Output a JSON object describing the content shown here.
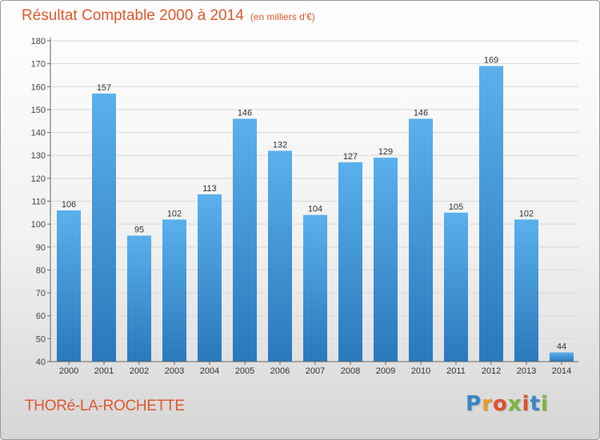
{
  "chart_data": {
    "type": "bar",
    "title": "Résultat Comptable 2000 à 2014",
    "subtitle": "(en milliers d'€)",
    "categories": [
      "2000",
      "2001",
      "2002",
      "2003",
      "2004",
      "2005",
      "2006",
      "2007",
      "2008",
      "2009",
      "2010",
      "2011",
      "2012",
      "2013",
      "2014"
    ],
    "values": [
      106,
      157,
      95,
      102,
      113,
      146,
      132,
      104,
      127,
      129,
      146,
      105,
      169,
      102,
      44
    ],
    "ylim": [
      40,
      180
    ],
    "yticks": [
      40,
      50,
      60,
      70,
      80,
      90,
      100,
      110,
      120,
      130,
      140,
      150,
      160,
      170,
      180
    ],
    "xlabel": "",
    "ylabel": "",
    "grid": true,
    "bar_color": "#4a9fde",
    "bar_color_dark": "#2c7cc0"
  },
  "footer": {
    "commune": "THORé-LA-ROCHETTE",
    "logo_letters": [
      "P",
      "r",
      "o",
      "x",
      "i",
      "t",
      "i"
    ],
    "logo_colors": [
      "#3a86c8",
      "#e89a2a",
      "#e0502e",
      "#7ab83a",
      "#e0502e",
      "#3a86c8",
      "#7ab83a"
    ]
  }
}
